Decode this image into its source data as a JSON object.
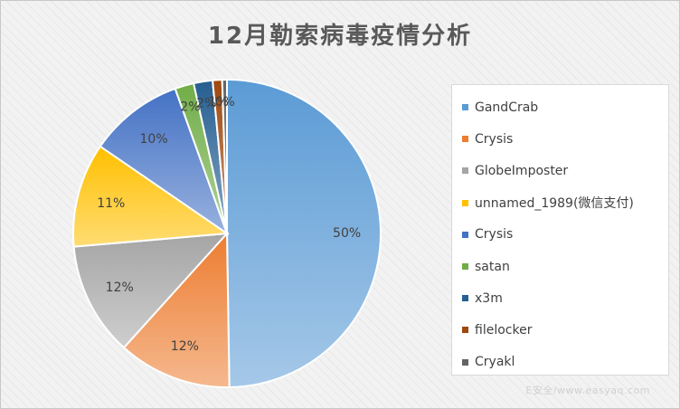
{
  "chart_data": {
    "type": "pie",
    "title": "12月勒索病毒疫情分析",
    "legend_position": "right",
    "slices": [
      {
        "name": "GandCrab",
        "value": 50,
        "label": "50%",
        "color": "#5b9bd5"
      },
      {
        "name": "Crysis",
        "value": 12,
        "label": "12%",
        "color": "#ed7d31"
      },
      {
        "name": "GlobeImposter",
        "value": 12,
        "label": "12%",
        "color": "#a5a5a5"
      },
      {
        "name": "unnamed_1989(微信支付)",
        "value": 11,
        "label": "11%",
        "color": "#ffc000"
      },
      {
        "name": "Crysis",
        "value": 10,
        "label": "10%",
        "color": "#4472c4"
      },
      {
        "name": "satan",
        "value": 2,
        "label": "2%",
        "color": "#70ad47"
      },
      {
        "name": "x3m",
        "value": 2,
        "label": "2%",
        "color": "#255e91"
      },
      {
        "name": "filelocker",
        "value": 1,
        "label": "1%",
        "color": "#9e480e"
      },
      {
        "name": "Cryakl",
        "value": 0.5,
        "label": "0%",
        "color": "#636363"
      }
    ]
  },
  "watermark": "E安全/www.easyaq.com"
}
